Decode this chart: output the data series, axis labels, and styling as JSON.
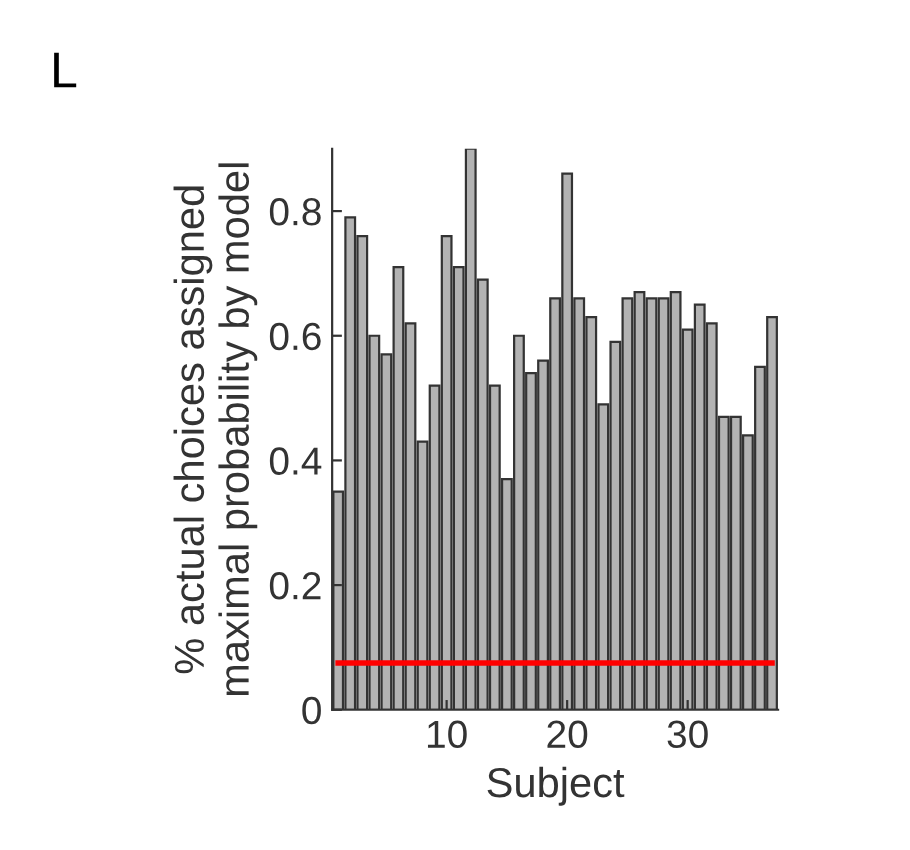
{
  "chart_data": {
    "type": "bar",
    "xlabel": "Subject",
    "ylabel": "% actual choices assigned\nmaximal probability by model",
    "annotations": [
      "L"
    ],
    "x": [
      1,
      2,
      3,
      4,
      5,
      6,
      7,
      8,
      9,
      10,
      11,
      12,
      13,
      14,
      15,
      16,
      17,
      18,
      19,
      20,
      21,
      22,
      23,
      24,
      25,
      26,
      27,
      28,
      29,
      30,
      31,
      32,
      33,
      34,
      35,
      36,
      37
    ],
    "series": [
      {
        "color": "#b3b3b3",
        "values": [
          0.35,
          0.79,
          0.76,
          0.6,
          0.57,
          0.71,
          0.62,
          0.43,
          0.52,
          0.76,
          0.71,
          0.9,
          0.69,
          0.52,
          0.37,
          0.6,
          0.54,
          0.56,
          0.66,
          0.86,
          0.66,
          0.63,
          0.49,
          0.59,
          0.66,
          0.67,
          0.66,
          0.66,
          0.67,
          0.61,
          0.65,
          0.62,
          0.47,
          0.47,
          0.44,
          0.55,
          0.63
        ]
      },
      {
        "type": "line",
        "color": "#ff0000",
        "values": [
          0.075,
          0.075,
          0.075,
          0.075,
          0.075,
          0.075,
          0.075,
          0.075,
          0.075,
          0.075,
          0.075,
          0.075,
          0.075,
          0.075,
          0.075,
          0.075,
          0.075,
          0.075,
          0.075,
          0.075,
          0.075,
          0.075,
          0.075,
          0.075,
          0.075,
          0.075,
          0.075,
          0.075,
          0.075,
          0.075,
          0.075,
          0.075,
          0.075,
          0.075,
          0.075,
          0.075,
          0.075
        ]
      }
    ],
    "xlim": [
      0.5,
      37.5
    ],
    "ylim": [
      0,
      0.9
    ],
    "xticks": [
      10,
      20,
      30
    ],
    "yticks": [
      0,
      0.2,
      0.4,
      0.6,
      0.8
    ],
    "grid": false,
    "legend": false
  }
}
